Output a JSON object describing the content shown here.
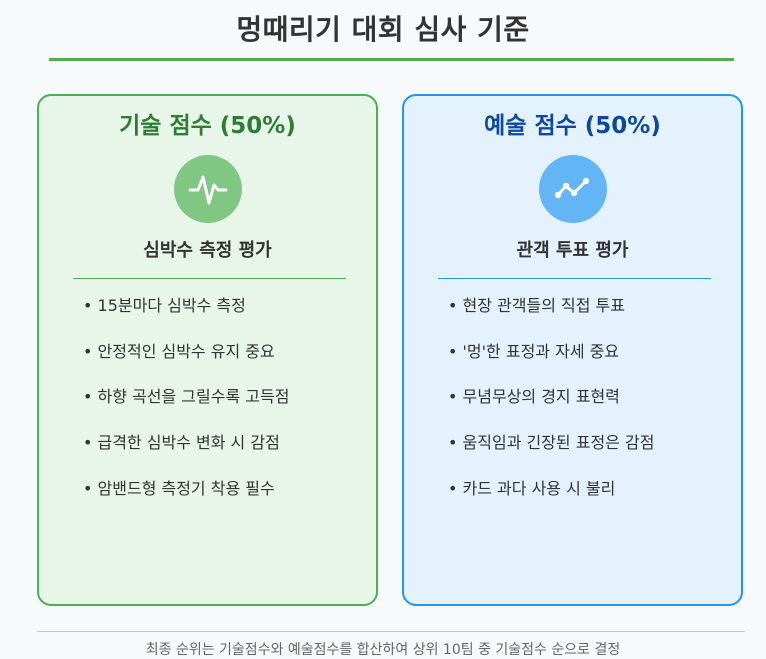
{
  "title": "멍때리기 대회 심사 기준",
  "technical": {
    "title": "기술 점수 (50%)",
    "icon": "heartbeat-icon",
    "subtitle": "심박수 측정 평가",
    "items": [
      "15분마다 심박수 측정",
      "안정적인 심박수 유지 중요",
      "하향 곡선을 그릴수록 고득점",
      "급격한 심박수 변화 시 감점",
      "암밴드형 측정기 착용 필수"
    ],
    "accent": "#4caf50",
    "background": "#e8f5e9"
  },
  "artistic": {
    "title": "예술 점수 (50%)",
    "icon": "trend-line-icon",
    "subtitle": "관객 투표 평가",
    "items": [
      "현장 관객들의 직접 투표",
      "'멍'한 표정과 자세 중요",
      "무념무상의 경지 표현력",
      "움직임과 긴장된 표정은 감점",
      "카드 과다 사용 시 불리"
    ],
    "accent": "#2196f3",
    "background": "#e3f2fd"
  },
  "footer": "최종 순위는 기술점수와 예술점수를 합산하여 상위 10팀 중 기술점수 순으로 결정"
}
